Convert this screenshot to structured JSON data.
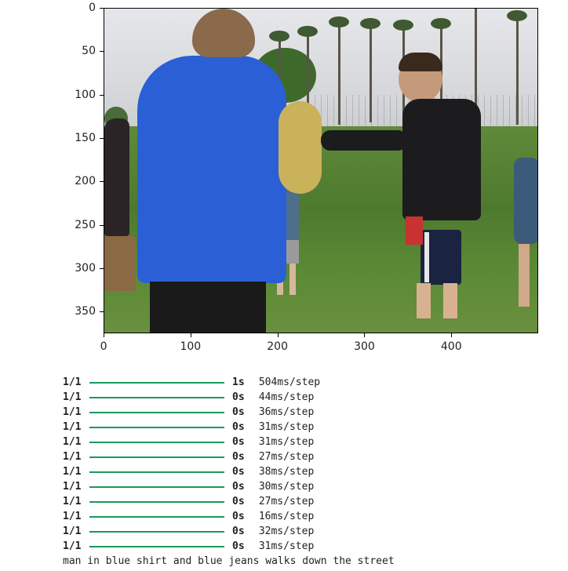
{
  "figure": {
    "yticks": [
      "0",
      "50",
      "100",
      "150",
      "200",
      "250",
      "300",
      "350"
    ],
    "xticks": [
      "0",
      "100",
      "200",
      "300",
      "400"
    ]
  },
  "console": {
    "steps": [
      {
        "count": "1/1",
        "time": "1s",
        "rate": "504ms/step"
      },
      {
        "count": "1/1",
        "time": "0s",
        "rate": "44ms/step"
      },
      {
        "count": "1/1",
        "time": "0s",
        "rate": "36ms/step"
      },
      {
        "count": "1/1",
        "time": "0s",
        "rate": "31ms/step"
      },
      {
        "count": "1/1",
        "time": "0s",
        "rate": "31ms/step"
      },
      {
        "count": "1/1",
        "time": "0s",
        "rate": "27ms/step"
      },
      {
        "count": "1/1",
        "time": "0s",
        "rate": "38ms/step"
      },
      {
        "count": "1/1",
        "time": "0s",
        "rate": "30ms/step"
      },
      {
        "count": "1/1",
        "time": "0s",
        "rate": "27ms/step"
      },
      {
        "count": "1/1",
        "time": "0s",
        "rate": "16ms/step"
      },
      {
        "count": "1/1",
        "time": "0s",
        "rate": "32ms/step"
      },
      {
        "count": "1/1",
        "time": "0s",
        "rate": "31ms/step"
      }
    ],
    "caption": "man in blue shirt and blue jeans walks down the street"
  },
  "colors": {
    "progress_bar": "#1a9a5a",
    "hoodie_blue": "#2a5fd6",
    "jacket_black": "#1c1c1e",
    "grass": "#5b8a35"
  }
}
